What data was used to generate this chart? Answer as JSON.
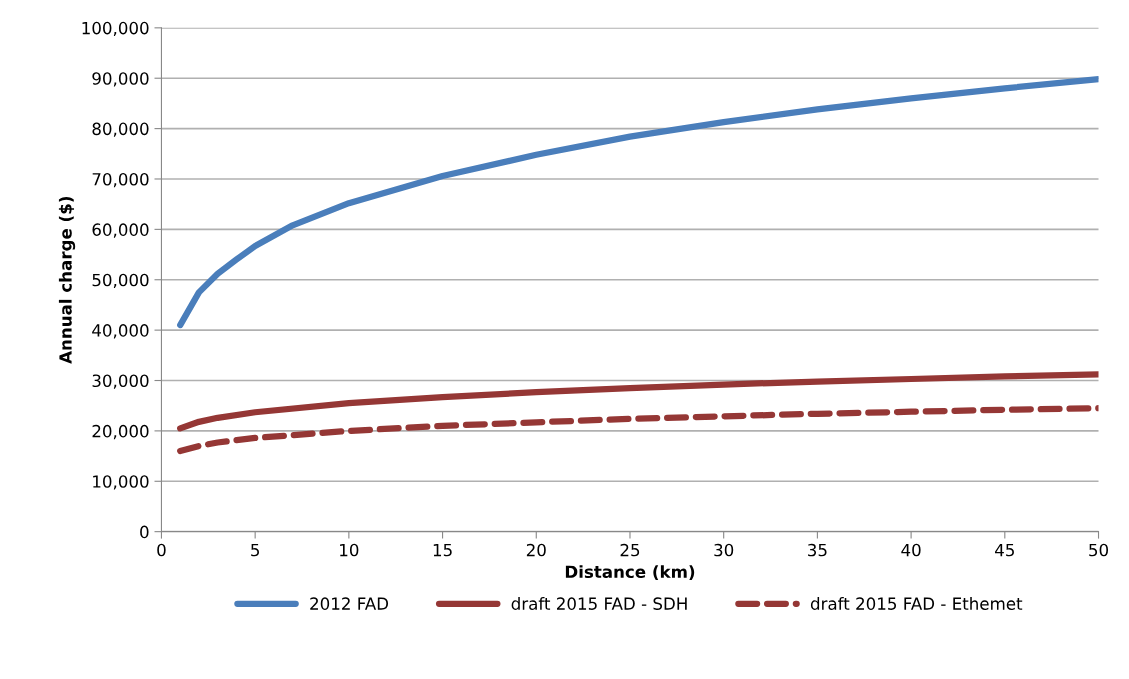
{
  "chart_data": {
    "type": "line",
    "xlabel": "Distance (km)",
    "ylabel": "Annual charge ($)",
    "xlim": [
      0,
      50
    ],
    "xticks": [
      0,
      5,
      10,
      15,
      20,
      25,
      30,
      35,
      40,
      45,
      50
    ],
    "ylim": [
      0,
      100000
    ],
    "yticks": [
      {
        "value": 0,
        "label": "0"
      },
      {
        "value": 10000,
        "label": "10,000"
      },
      {
        "value": 20000,
        "label": "20,000"
      },
      {
        "value": 30000,
        "label": "30,000"
      },
      {
        "value": 40000,
        "label": "40,000"
      },
      {
        "value": 50000,
        "label": "50,000"
      },
      {
        "value": 60000,
        "label": "60,000"
      },
      {
        "value": 70000,
        "label": "70,000"
      },
      {
        "value": 80000,
        "label": "80,000"
      },
      {
        "value": 90000,
        "label": "90,000"
      },
      {
        "value": 100000,
        "label": "100,000"
      }
    ],
    "grid": "y",
    "legend": "bottom",
    "marker": "none",
    "series": [
      {
        "name": "2012 FAD",
        "color": "#4a7ebb",
        "line_style": "solid",
        "x": [
          1,
          2,
          3,
          4,
          5,
          7,
          10,
          15,
          20,
          25,
          30,
          35,
          40,
          45,
          50
        ],
        "values": [
          41000,
          47500,
          51200,
          54000,
          56700,
          60800,
          65200,
          70600,
          74800,
          78400,
          81300,
          83800,
          86000,
          88000,
          89800
        ]
      },
      {
        "name": "draft 2015 FAD - SDH",
        "color": "#953735",
        "line_style": "solid",
        "x": [
          1,
          2,
          3,
          5,
          10,
          15,
          20,
          25,
          30,
          35,
          40,
          45,
          50
        ],
        "values": [
          20500,
          21800,
          22600,
          23700,
          25500,
          26700,
          27700,
          28500,
          29200,
          29800,
          30300,
          30800,
          31200
        ]
      },
      {
        "name": "draft 2015 FAD - Ethemet",
        "color": "#953735",
        "line_style": "dashed",
        "x": [
          1,
          2,
          3,
          5,
          10,
          15,
          20,
          25,
          30,
          35,
          40,
          45,
          50
        ],
        "values": [
          16000,
          17000,
          17700,
          18600,
          20000,
          21000,
          21700,
          22400,
          22900,
          23400,
          23800,
          24200,
          24500
        ]
      }
    ]
  }
}
